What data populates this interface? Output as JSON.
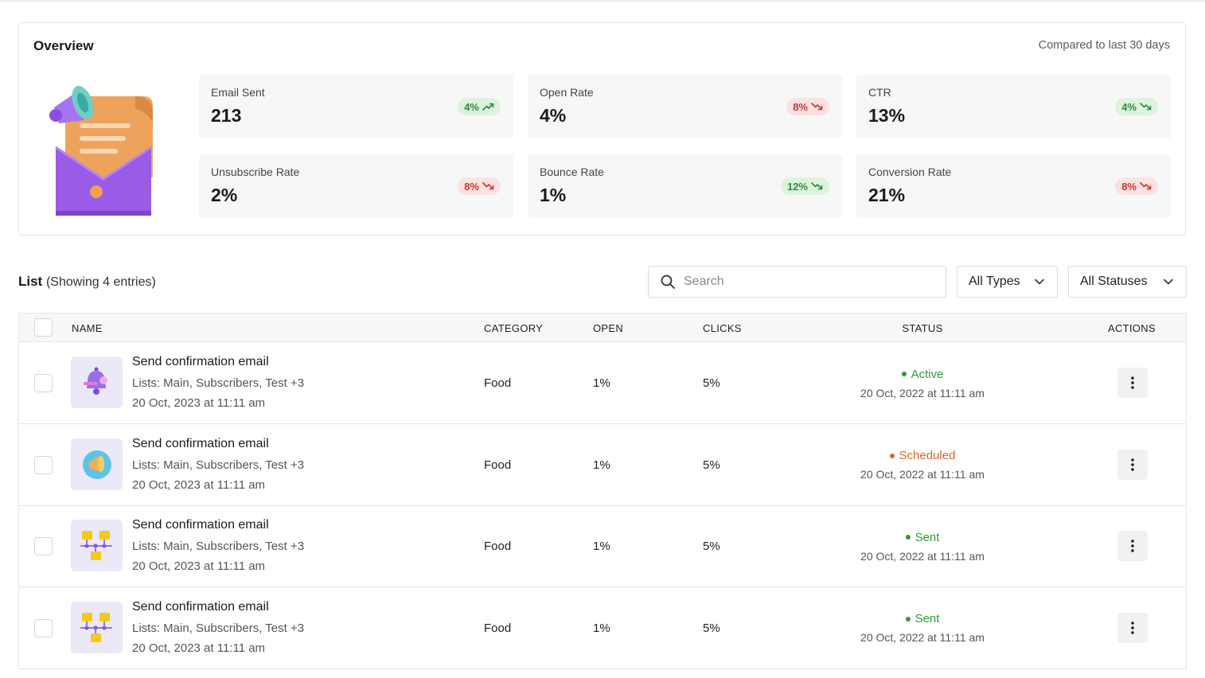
{
  "overview": {
    "title": "Overview",
    "compare": "Compared to last 30 days",
    "metrics": [
      {
        "label": "Email Sent",
        "value": "213",
        "change": "4%",
        "trend": "up",
        "tone": "up"
      },
      {
        "label": "Open Rate",
        "value": "4%",
        "change": "8%",
        "trend": "down",
        "tone": "down"
      },
      {
        "label": "CTR",
        "value": "13%",
        "change": "4%",
        "trend": "down",
        "tone": "up"
      },
      {
        "label": "Unsubscribe Rate",
        "value": "2%",
        "change": "8%",
        "trend": "down",
        "tone": "down"
      },
      {
        "label": "Bounce Rate",
        "value": "1%",
        "change": "12%",
        "trend": "down",
        "tone": "up"
      },
      {
        "label": "Conversion Rate",
        "value": "21%",
        "change": "8%",
        "trend": "down",
        "tone": "down"
      }
    ]
  },
  "list": {
    "title": "List",
    "subtitle": "(Showing 4 entries)",
    "search_placeholder": "Search",
    "type_filter": "All Types",
    "status_filter": "All Statuses",
    "columns": {
      "name": "NAME",
      "category": "CATEGORY",
      "open": "OPEN",
      "clicks": "CLICKS",
      "status": "STATUS",
      "actions": "ACTIONS"
    },
    "rows": [
      {
        "icon": "bell-icon",
        "name": "Send confirmation email",
        "lists": "Lists: Main, Subscribers, Test  +3",
        "date": "20 Oct, 2023 at 11:11 am",
        "category": "Food",
        "open": "1%",
        "clicks": "5%",
        "status": "Active",
        "status_type": "active",
        "status_date": "20 Oct, 2022 at 11:11 am"
      },
      {
        "icon": "megaphone-icon",
        "name": "Send confirmation email",
        "lists": "Lists: Main, Subscribers, Test  +3",
        "date": "20 Oct, 2023 at 11:11 am",
        "category": "Food",
        "open": "1%",
        "clicks": "5%",
        "status": "Scheduled",
        "status_type": "scheduled",
        "status_date": "20 Oct, 2022 at 11:11 am"
      },
      {
        "icon": "workflow-icon",
        "name": "Send confirmation email",
        "lists": "Lists: Main, Subscribers, Test  +3",
        "date": "20 Oct, 2023 at 11:11 am",
        "category": "Food",
        "open": "1%",
        "clicks": "5%",
        "status": "Sent",
        "status_type": "sent",
        "status_date": "20 Oct, 2022 at 11:11 am"
      },
      {
        "icon": "workflow-icon",
        "name": "Send confirmation email",
        "lists": "Lists: Main, Subscribers, Test  +3",
        "date": "20 Oct, 2023 at 11:11 am",
        "category": "Food",
        "open": "1%",
        "clicks": "5%",
        "status": "Sent",
        "status_type": "sent",
        "status_date": "20 Oct, 2022 at 11:11 am"
      }
    ]
  }
}
